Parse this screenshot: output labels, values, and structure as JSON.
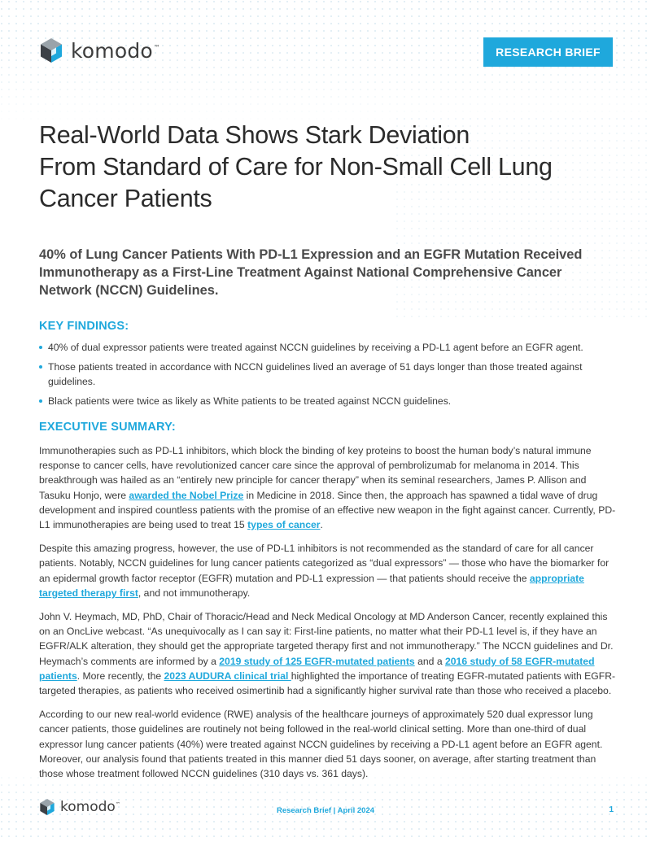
{
  "header": {
    "logo_text": "komodo",
    "logo_tm": "™",
    "badge": "RESEARCH BRIEF"
  },
  "title_lines": [
    "Real-World Data Shows Stark Deviation",
    "From Standard of Care for Non-Small Cell Lung",
    "Cancer Patients"
  ],
  "subtitle": "40% of Lung Cancer Patients With PD-L1 Expression and an EGFR Mutation Received Immunotherapy as a First-Line Treatment Against National Comprehensive Cancer Network (NCCN) Guidelines.",
  "key_findings": {
    "heading": "KEY FINDINGS:",
    "items": [
      "40% of dual expressor patients were treated against NCCN guidelines by receiving a PD-L1 agent before an EGFR agent.",
      "Those patients treated in accordance with NCCN guidelines lived an average of 51 days longer than those treated against guidelines.",
      "Black patients were twice as likely as White patients to be treated against NCCN guidelines."
    ]
  },
  "executive_summary": {
    "heading": "EXECUTIVE SUMMARY:",
    "p1": {
      "t1": "Immunotherapies such as PD-L1 inhibitors, which block the binding of key proteins to boost the human body’s natural immune response to cancer cells, have revolutionized cancer care since the approval of pembrolizumab for melanoma in 2014. This breakthrough was hailed as an “entirely new principle for cancer therapy” when its seminal researchers, James P. Allison and Tasuku Honjo, were ",
      "link1": "awarded the Nobel Prize",
      "t2": " in Medicine in 2018. Since then, the approach has spawned a tidal wave of drug development and inspired countless patients with the promise of an effective new weapon in the fight against cancer. Currently, PD-L1 immunotherapies are being used to treat 15 ",
      "link2": "types of cancer",
      "t3": "."
    },
    "p2": {
      "t1": "Despite this amazing progress, however, the use of PD-L1 inhibitors is not recommended as the standard of care for all cancer patients. Notably, NCCN guidelines for lung cancer patients categorized as “dual expressors” — those who have the biomarker for an epidermal growth factor receptor (EGFR) mutation and PD-L1 expression —  that patients should receive the ",
      "link1": "appropriate targeted therapy first",
      "t2": ", and not immunotherapy."
    },
    "p3": {
      "t1": "John V. Heymach, MD, PhD, Chair of Thoracic/Head and Neck Medical Oncology at MD Anderson Cancer, recently explained this on an OncLive webcast. “As unequivocally as I can say it: First-line patients, no matter what their PD-L1 level is, if they have an EGFR/ALK alteration, they should get the appropriate targeted therapy first and not immunotherapy.” The NCCN guidelines and Dr. Heymach’s comments are informed by a ",
      "link1": "2019 study of 125 EGFR-mutated patients",
      "t2": " and a ",
      "link2": "2016 study of 58 EGFR-mutated patients",
      "t3": ". More recently, the ",
      "link3": "2023 AUDURA clinical trial ",
      "t4": "highlighted the importance of treating EGFR-mutated patients with EGFR-targeted therapies, as patients who received osimertinib had a significantly higher survival rate than those who received a placebo."
    },
    "p4": "According to our new real-world evidence (RWE) analysis of the healthcare journeys of approximately 520 dual expressor lung cancer patients, those guidelines are routinely not being followed in the real-world clinical setting. More than one-third of dual expressor lung cancer patients (40%) were treated against NCCN guidelines by receiving a PD-L1 agent before an EGFR agent. Moreover, our analysis found that patients treated in this manner died 51 days sooner, on average, after starting treatment than those whose treatment followed NCCN guidelines (310 days vs. 361 days)."
  },
  "footer": {
    "logo_text": "komodo",
    "logo_tm": "™",
    "center": "Research Brief  | April 2024",
    "page_number": "1"
  },
  "colors": {
    "accent": "#1fa8dc",
    "text": "#3a3a3a",
    "title": "#2b2b2b"
  }
}
